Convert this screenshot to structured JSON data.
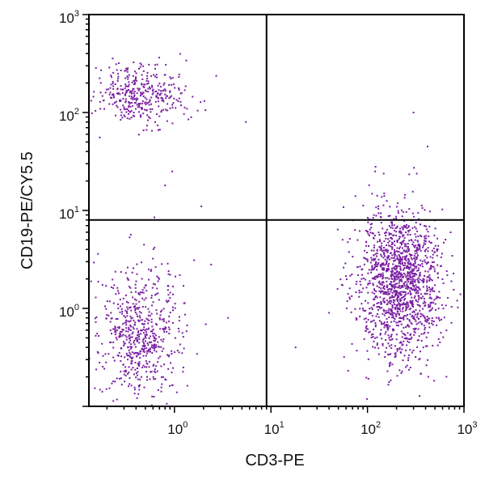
{
  "chart_data": {
    "type": "scatter",
    "xlabel": "CD3-PE",
    "ylabel": "CD19-PE/CY5.5",
    "xscale": "log",
    "yscale": "log",
    "xlim": [
      0.13,
      1000
    ],
    "ylim": [
      0.1,
      1000
    ],
    "x_ticks": [
      {
        "base": "10",
        "exp": "0",
        "value": 1
      },
      {
        "base": "10",
        "exp": "1",
        "value": 10
      },
      {
        "base": "10",
        "exp": "2",
        "value": 100
      },
      {
        "base": "10",
        "exp": "3",
        "value": 1000
      }
    ],
    "y_ticks": [
      {
        "base": "10",
        "exp": "0",
        "value": 1
      },
      {
        "base": "10",
        "exp": "1",
        "value": 10
      },
      {
        "base": "10",
        "exp": "2",
        "value": 100
      },
      {
        "base": "10",
        "exp": "3",
        "value": 1000
      }
    ],
    "quadrant_gates": {
      "x": 9,
      "y": 8
    },
    "point_color": "#7a1fa2",
    "populations": [
      {
        "quadrant": "upper-left",
        "center": [
          0.45,
          150
        ],
        "count": 380
      },
      {
        "quadrant": "lower-left",
        "center": [
          0.45,
          0.55
        ],
        "count": 620
      },
      {
        "quadrant": "lower-right",
        "center": [
          220,
          1.8
        ],
        "count": 1500
      }
    ],
    "sparse_points": [
      [
        0.22,
        0.9
      ],
      [
        0.62,
        8.5
      ],
      [
        0.8,
        18
      ],
      [
        1.2,
        0.35
      ],
      [
        1.6,
        3.1
      ],
      [
        2.4,
        2.8
      ],
      [
        3.6,
        0.8
      ],
      [
        5.5,
        80
      ],
      [
        1.9,
        11
      ],
      [
        0.95,
        25
      ],
      [
        18,
        0.4
      ],
      [
        40,
        0.9
      ],
      [
        300,
        100
      ],
      [
        420,
        45
      ],
      [
        120,
        25
      ],
      [
        75,
        14
      ]
    ]
  }
}
